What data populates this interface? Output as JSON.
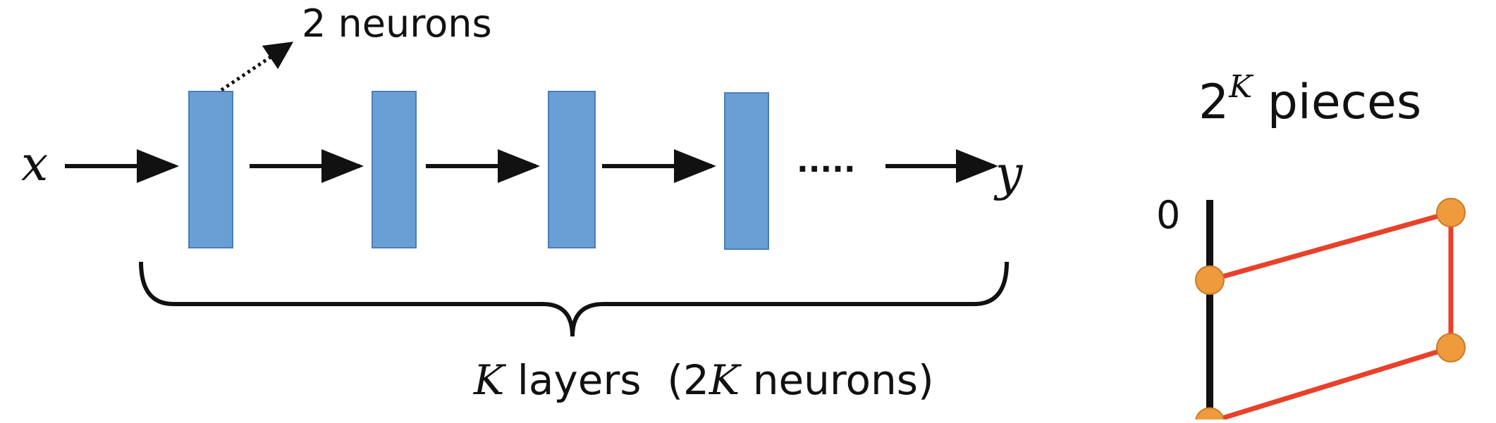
{
  "diagram": {
    "input_var": "x",
    "output_var": "y",
    "annotation_text": "2 neurons",
    "ellipsis": ".....",
    "layers_label": {
      "K": "K",
      "layers": " layers  (2",
      "K2": "K",
      "neurons": " neurons)"
    },
    "layer_count_shown": 4,
    "layer_color": "#6a9fd6",
    "layer_border": "#4a7fb8"
  },
  "plot": {
    "title_base": "2",
    "title_exp": "K",
    "title_rest": " pieces",
    "axis_zero_label": "0",
    "line_color": "#e8412a",
    "point_color": "#f09a3e",
    "point_border": "#c97a28",
    "points": [
      {
        "x": 0,
        "y": 0.5
      },
      {
        "x": 1,
        "y": 1
      },
      {
        "x": 1,
        "y": 0
      },
      {
        "x": 0,
        "y": -0.55
      }
    ]
  }
}
